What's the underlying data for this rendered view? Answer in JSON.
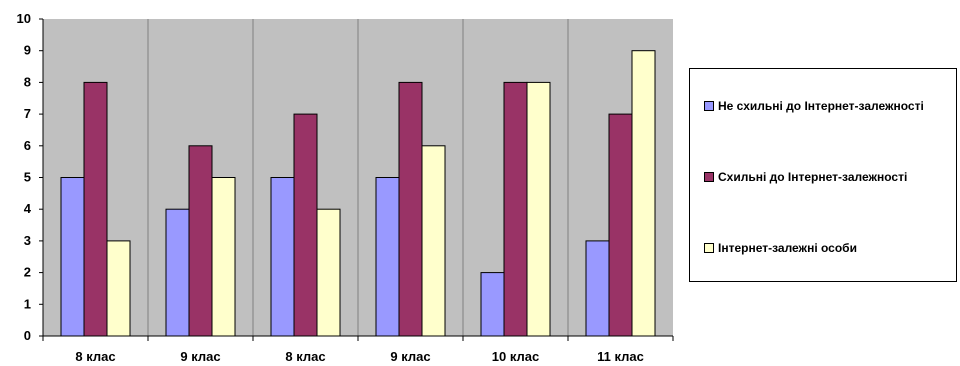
{
  "chart_data": {
    "type": "bar",
    "categories": [
      "8 клас",
      "9 клас",
      "8 клас",
      "9 клас",
      "10 клас",
      "11 клас"
    ],
    "series": [
      {
        "name": "Не схильні до Інтернет-залежності",
        "values": [
          5,
          4,
          5,
          5,
          2,
          3
        ],
        "color": "#9999ff"
      },
      {
        "name": "Схильні до Інтернет-залежності",
        "values": [
          8,
          6,
          7,
          8,
          8,
          7
        ],
        "color": "#993366"
      },
      {
        "name": "Інтернет-залежні особи",
        "values": [
          3,
          5,
          4,
          6,
          8,
          9
        ],
        "color": "#ffffcc"
      }
    ],
    "ylim": [
      0,
      10
    ],
    "yticks": [
      "0",
      "1",
      "2",
      "3",
      "4",
      "5",
      "6",
      "7",
      "8",
      "9",
      "10"
    ],
    "plot_background": "#c0c0c0",
    "grid": "vertical category separators",
    "legend_position": "right"
  }
}
